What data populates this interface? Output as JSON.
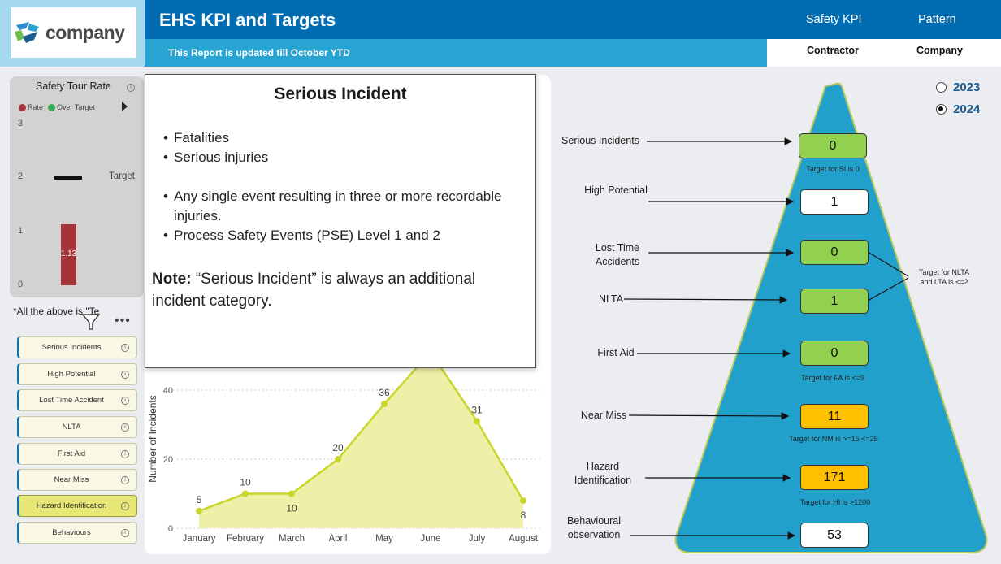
{
  "header": {
    "logo_text": "company",
    "title": "EHS KPI and Targets",
    "subtitle": "This Report is updated till October YTD",
    "nav": [
      "Safety KPI",
      "Pattern"
    ],
    "tabs": [
      "Contractor",
      "Company"
    ]
  },
  "safety_tour": {
    "title": "Safety Tour Rate",
    "legend": [
      "Rate",
      "Over Target"
    ],
    "yticks": [
      "3",
      "2",
      "1",
      "0"
    ],
    "target_label": "Target",
    "bar_value": "1.13",
    "rate": 1.13,
    "target": 2,
    "colors": {
      "rate": "#a4343a",
      "over_target": "#3caa52"
    }
  },
  "note_text": "*All the above   is     \"Te",
  "filters": [
    {
      "label": "Serious Incidents"
    },
    {
      "label": "High Potential"
    },
    {
      "label": "Lost Time Accident"
    },
    {
      "label": "NLTA"
    },
    {
      "label": "First Aid"
    },
    {
      "label": "Near Miss"
    },
    {
      "label": "Hazard Identification"
    },
    {
      "label": "Behaviours"
    }
  ],
  "popup": {
    "title": "Serious Incident",
    "bullets_1": [
      "Fatalities",
      "Serious injuries"
    ],
    "bullets_2": [
      "Any single event resulting in three or more recordable",
      "injuries.",
      "Process Safety Events (PSE) Level 1 and 2"
    ],
    "note_bold": "Note:",
    "note_text": " “Serious Incident” is always an additional incident category."
  },
  "chart_data": {
    "type": "area",
    "categories": [
      "January",
      "February",
      "March",
      "April",
      "May",
      "June",
      "July",
      "August"
    ],
    "values": [
      5,
      10,
      10,
      20,
      36,
      51,
      31,
      8
    ],
    "value_labels": [
      "5",
      "10",
      "10",
      "20",
      "36",
      "51",
      "31",
      "8"
    ],
    "ylabel": "Number of Incidents",
    "yticks": [
      "40",
      "20",
      "0"
    ],
    "ylim": [
      0,
      56
    ],
    "colors": {
      "line": "#c8d62b",
      "fill": "#eef0a8"
    }
  },
  "years": {
    "options": [
      "2023",
      "2024"
    ],
    "selected": "2024"
  },
  "pyramid": {
    "items": [
      {
        "label": "Serious Incidents",
        "value": "0",
        "color": "#92d050",
        "target": "Target for SI is 0"
      },
      {
        "label": "High Potential",
        "value": "1",
        "color": "#ffffff",
        "target": ""
      },
      {
        "label": "Lost Time Accidents",
        "value": "0",
        "color": "#92d050",
        "target": ""
      },
      {
        "label": "NLTA",
        "value": "1",
        "color": "#92d050",
        "target": ""
      },
      {
        "label": "First Aid",
        "value": "0",
        "color": "#92d050",
        "target": "Target for FA is <=9"
      },
      {
        "label": "Near Miss",
        "value": "11",
        "color": "#ffc000",
        "target": "Target for NM is >=15 <=25"
      },
      {
        "label": "Hazard Identification",
        "value": "171",
        "color": "#ffc000",
        "target": "Target for HI is >1200"
      },
      {
        "label": "Behavioural observation",
        "value": "53",
        "color": "#ffffff",
        "target": ""
      }
    ],
    "group_target": "Target for NLTA and LTA is <=2",
    "fill_color": "#22a0cc"
  }
}
